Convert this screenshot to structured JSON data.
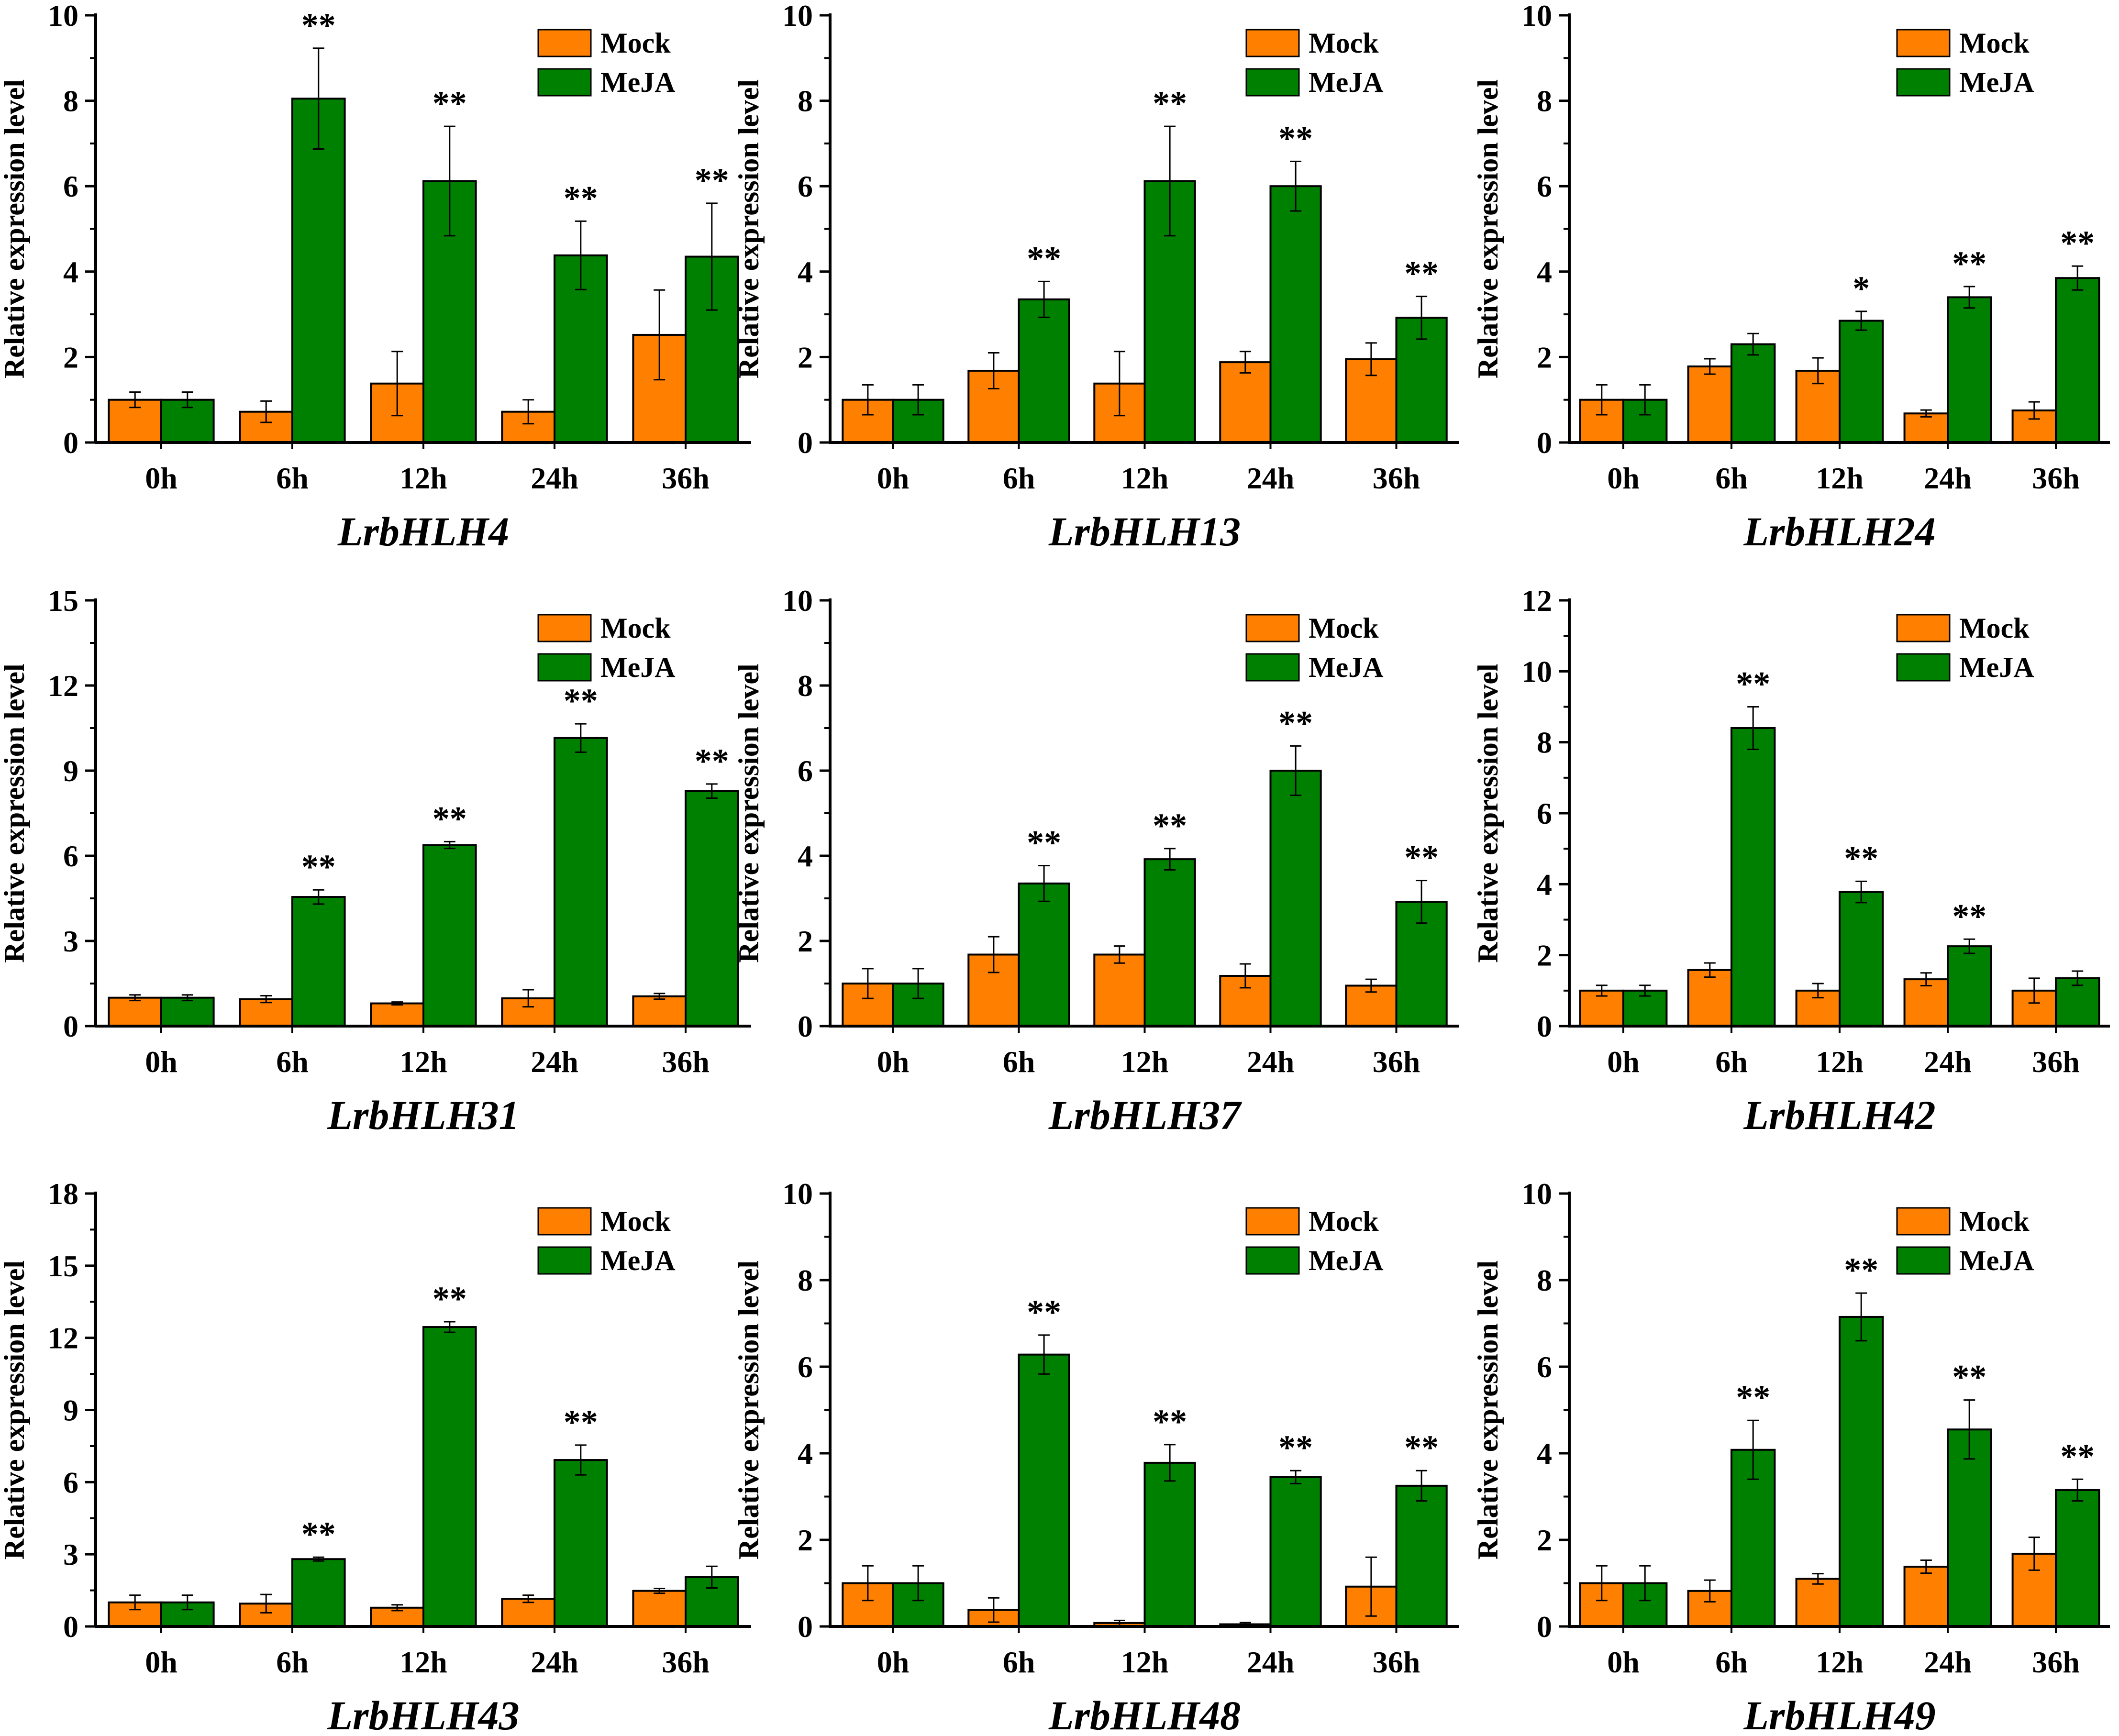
{
  "colors": {
    "mock": "#FF8000",
    "meja": "#008000",
    "axis": "#000000"
  },
  "legend": [
    "Mock",
    "MeJA"
  ],
  "ylabel": "Relative expression level",
  "chart_data": [
    {
      "type": "bar",
      "title": "LrbHLH4",
      "xlabel": "LrbHLH4",
      "ylabel": "Relative expression level",
      "categories": [
        "0h",
        "6h",
        "12h",
        "24h",
        "36h"
      ],
      "ylim": [
        0,
        10
      ],
      "yticks": [
        0,
        2,
        4,
        6,
        8,
        10
      ],
      "series": [
        {
          "name": "Mock",
          "values": [
            1.0,
            0.72,
            1.38,
            0.72,
            2.52
          ],
          "errors": [
            0.18,
            0.25,
            0.75,
            0.28,
            1.05
          ]
        },
        {
          "name": "MeJA",
          "values": [
            1.0,
            8.05,
            6.12,
            4.38,
            4.35
          ],
          "errors": [
            0.18,
            1.18,
            1.28,
            0.8,
            1.25
          ]
        }
      ],
      "annotations": [
        "",
        "**",
        "**",
        "**",
        "**"
      ]
    },
    {
      "type": "bar",
      "title": "LrbHLH13",
      "xlabel": "LrbHLH13",
      "ylabel": "Relative expression level",
      "categories": [
        "0h",
        "6h",
        "12h",
        "24h",
        "36h"
      ],
      "ylim": [
        0,
        10
      ],
      "yticks": [
        0,
        2,
        4,
        6,
        8,
        10
      ],
      "series": [
        {
          "name": "Mock",
          "values": [
            1.0,
            1.68,
            1.38,
            1.88,
            1.95
          ],
          "errors": [
            0.35,
            0.42,
            0.75,
            0.25,
            0.38
          ]
        },
        {
          "name": "MeJA",
          "values": [
            1.0,
            3.35,
            6.12,
            6.0,
            2.92
          ],
          "errors": [
            0.35,
            0.42,
            1.28,
            0.58,
            0.5
          ]
        }
      ],
      "annotations": [
        "",
        "**",
        "**",
        "**",
        "**"
      ]
    },
    {
      "type": "bar",
      "title": "LrbHLH24",
      "xlabel": "LrbHLH24",
      "ylabel": "Relative expression level",
      "categories": [
        "0h",
        "6h",
        "12h",
        "24h",
        "36h"
      ],
      "ylim": [
        0,
        10
      ],
      "yticks": [
        0,
        2,
        4,
        6,
        8,
        10
      ],
      "series": [
        {
          "name": "Mock",
          "values": [
            1.0,
            1.78,
            1.68,
            0.68,
            0.75
          ],
          "errors": [
            0.35,
            0.18,
            0.3,
            0.08,
            0.2
          ]
        },
        {
          "name": "MeJA",
          "values": [
            1.0,
            2.3,
            2.85,
            3.4,
            3.85
          ],
          "errors": [
            0.35,
            0.25,
            0.22,
            0.25,
            0.28
          ]
        }
      ],
      "annotations": [
        "",
        "",
        "*",
        "**",
        "**"
      ]
    },
    {
      "type": "bar",
      "title": "LrbHLH31",
      "xlabel": "LrbHLH31",
      "ylabel": "Relative expression level",
      "categories": [
        "0h",
        "6h",
        "12h",
        "24h",
        "36h"
      ],
      "ylim": [
        0,
        15
      ],
      "yticks": [
        0,
        3,
        6,
        9,
        12,
        15
      ],
      "series": [
        {
          "name": "Mock",
          "values": [
            1.0,
            0.95,
            0.8,
            0.98,
            1.05
          ],
          "errors": [
            0.1,
            0.12,
            0.05,
            0.3,
            0.1
          ]
        },
        {
          "name": "MeJA",
          "values": [
            1.0,
            4.55,
            6.38,
            10.15,
            8.28
          ],
          "errors": [
            0.1,
            0.25,
            0.12,
            0.5,
            0.25
          ]
        }
      ],
      "annotations": [
        "",
        "**",
        "**",
        "**",
        "**"
      ]
    },
    {
      "type": "bar",
      "title": "LrbHLH37",
      "xlabel": "LrbHLH37",
      "ylabel": "Relative expression level",
      "categories": [
        "0h",
        "6h",
        "12h",
        "24h",
        "36h"
      ],
      "ylim": [
        0,
        10
      ],
      "yticks": [
        0,
        2,
        4,
        6,
        8,
        10
      ],
      "series": [
        {
          "name": "Mock",
          "values": [
            1.0,
            1.68,
            1.68,
            1.18,
            0.95
          ],
          "errors": [
            0.35,
            0.42,
            0.2,
            0.28,
            0.15
          ]
        },
        {
          "name": "MeJA",
          "values": [
            1.0,
            3.35,
            3.92,
            6.0,
            2.92
          ],
          "errors": [
            0.35,
            0.42,
            0.25,
            0.58,
            0.5
          ]
        }
      ],
      "annotations": [
        "",
        "**",
        "**",
        "**",
        "**"
      ]
    },
    {
      "type": "bar",
      "title": "LrbHLH42",
      "xlabel": "LrbHLH42",
      "ylabel": "Relative expression level",
      "categories": [
        "0h",
        "6h",
        "12h",
        "24h",
        "36h"
      ],
      "ylim": [
        0,
        12
      ],
      "yticks": [
        0,
        2,
        4,
        6,
        8,
        10,
        12
      ],
      "series": [
        {
          "name": "Mock",
          "values": [
            1.0,
            1.58,
            1.0,
            1.32,
            1.0
          ],
          "errors": [
            0.15,
            0.2,
            0.2,
            0.18,
            0.35
          ]
        },
        {
          "name": "MeJA",
          "values": [
            1.0,
            8.4,
            3.78,
            2.25,
            1.35
          ],
          "errors": [
            0.15,
            0.6,
            0.3,
            0.2,
            0.2
          ]
        }
      ],
      "annotations": [
        "",
        "**",
        "**",
        "**",
        ""
      ]
    },
    {
      "type": "bar",
      "title": "LrbHLH43",
      "xlabel": "LrbHLH43",
      "ylabel": "Relative expression level",
      "categories": [
        "0h",
        "6h",
        "12h",
        "24h",
        "36h"
      ],
      "ylim": [
        0,
        18
      ],
      "yticks": [
        0,
        3,
        6,
        9,
        12,
        15,
        18
      ],
      "series": [
        {
          "name": "Mock",
          "values": [
            1.0,
            0.95,
            0.78,
            1.15,
            1.48
          ],
          "errors": [
            0.3,
            0.38,
            0.12,
            0.15,
            0.1
          ]
        },
        {
          "name": "MeJA",
          "values": [
            1.0,
            2.8,
            12.45,
            6.92,
            2.05
          ],
          "errors": [
            0.3,
            0.08,
            0.22,
            0.62,
            0.45
          ]
        }
      ],
      "annotations": [
        "",
        "**",
        "**",
        "**",
        ""
      ]
    },
    {
      "type": "bar",
      "title": "LrbHLH48",
      "xlabel": "LrbHLH48",
      "ylabel": "Relative expression level",
      "categories": [
        "0h",
        "6h",
        "12h",
        "24h",
        "36h"
      ],
      "ylim": [
        0,
        10
      ],
      "yticks": [
        0,
        2,
        4,
        6,
        8,
        10
      ],
      "series": [
        {
          "name": "Mock",
          "values": [
            1.0,
            0.38,
            0.08,
            0.05,
            0.92
          ],
          "errors": [
            0.4,
            0.28,
            0.06,
            0.04,
            0.68
          ]
        },
        {
          "name": "MeJA",
          "values": [
            1.0,
            6.28,
            3.78,
            3.45,
            3.25
          ],
          "errors": [
            0.4,
            0.45,
            0.42,
            0.15,
            0.35
          ]
        }
      ],
      "annotations": [
        "",
        "**",
        "**",
        "**",
        "**"
      ]
    },
    {
      "type": "bar",
      "title": "LrbHLH49",
      "xlabel": "LrbHLH49",
      "ylabel": "Relative expression level",
      "categories": [
        "0h",
        "6h",
        "12h",
        "24h",
        "36h"
      ],
      "ylim": [
        0,
        10
      ],
      "yticks": [
        0,
        2,
        4,
        6,
        8,
        10
      ],
      "series": [
        {
          "name": "Mock",
          "values": [
            1.0,
            0.82,
            1.1,
            1.38,
            1.68
          ],
          "errors": [
            0.4,
            0.25,
            0.12,
            0.15,
            0.38
          ]
        },
        {
          "name": "MeJA",
          "values": [
            1.0,
            4.08,
            7.15,
            4.55,
            3.15
          ],
          "errors": [
            0.4,
            0.68,
            0.55,
            0.68,
            0.25
          ]
        }
      ],
      "annotations": [
        "",
        "**",
        "**",
        "**",
        "**"
      ]
    }
  ]
}
